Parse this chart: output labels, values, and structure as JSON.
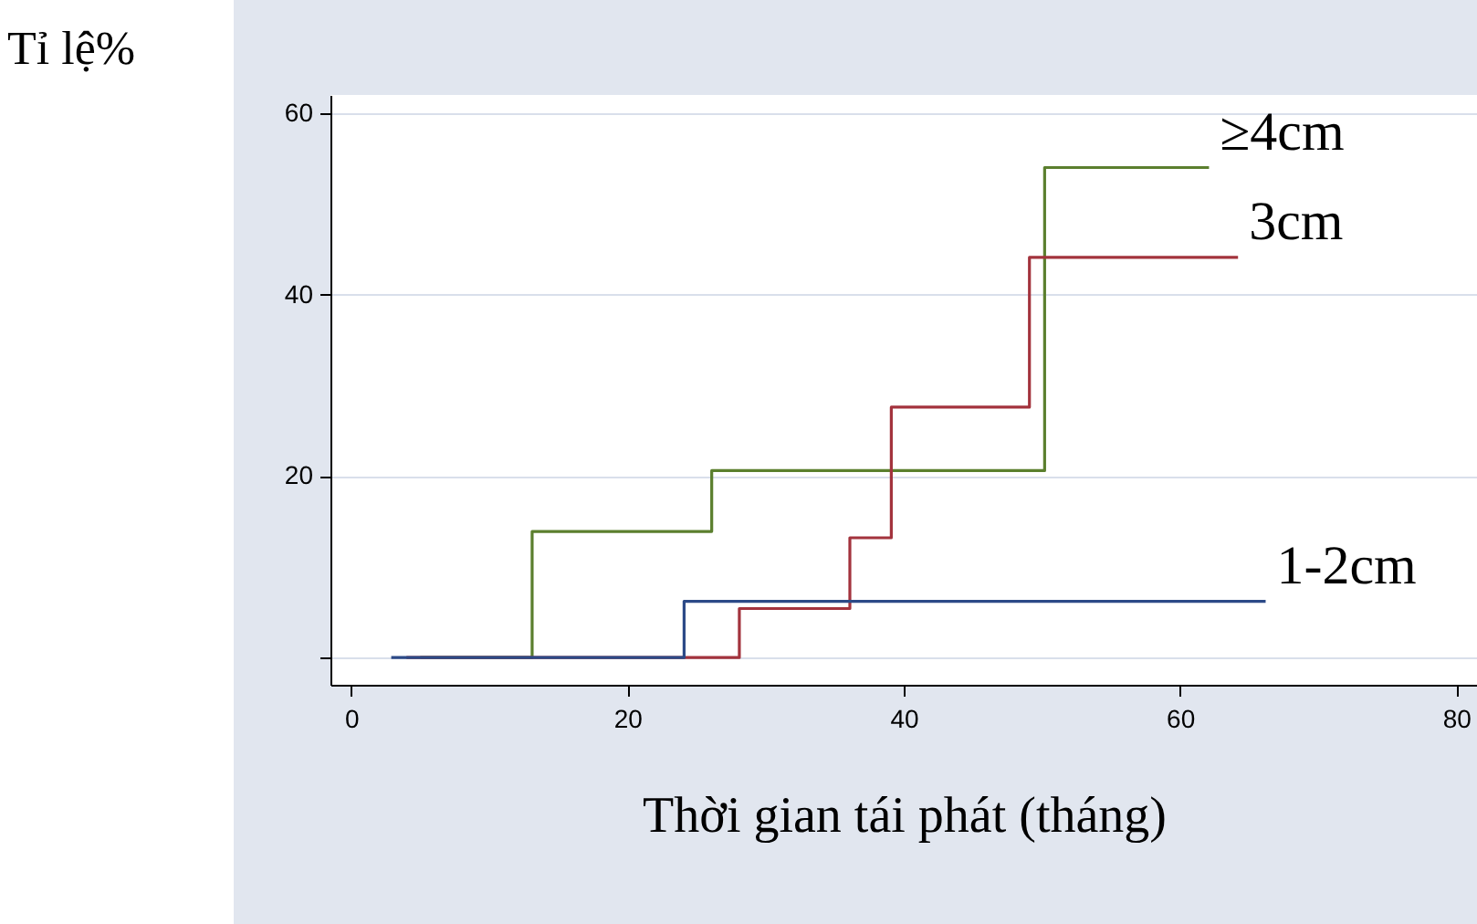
{
  "chart_data": {
    "type": "step",
    "xlabel": "Thời gian tái phát (tháng)",
    "ylabel": "Tỉ lệ%",
    "xlim": [
      -1.5,
      81.5
    ],
    "xticks": [
      0,
      20,
      40,
      60,
      80
    ],
    "ylim": [
      -3,
      62
    ],
    "yticks": [
      {
        "value": 0,
        "label": null
      },
      20,
      40,
      60
    ],
    "grid": "y",
    "legend": false,
    "series": [
      {
        "name": "≥4cm",
        "color": "#5b7f2e",
        "x": [
          5,
          13.1,
          26.1,
          50.2,
          62.1
        ],
        "values": [
          0,
          13.9,
          20.6,
          54,
          54
        ]
      },
      {
        "name": "3cm",
        "color": "#a3333d",
        "x": [
          4,
          28.1,
          36.1,
          39.1,
          49.1,
          64.2
        ],
        "values": [
          0,
          5.4,
          13.2,
          27.6,
          44.1,
          44.1
        ]
      },
      {
        "name": "1-2cm",
        "color": "#2c4a87",
        "x": [
          2.9,
          24.1,
          66.2
        ],
        "values": [
          0,
          6.2,
          6.2
        ]
      }
    ]
  }
}
